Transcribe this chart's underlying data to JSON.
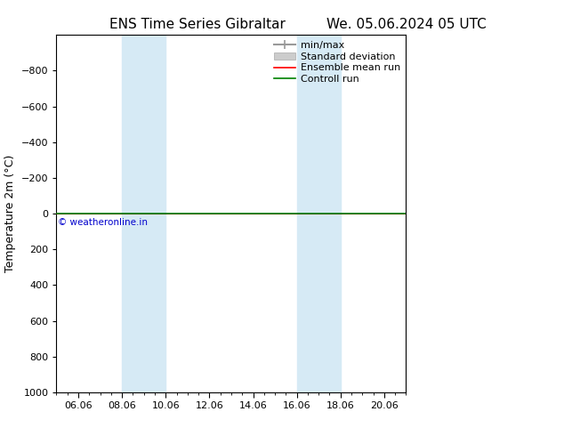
{
  "title_left": "ENS Time Series Gibraltar",
  "title_right": "We. 05.06.2024 05 UTC",
  "ylabel": "Temperature 2m (°C)",
  "ylim": [
    -1000,
    1000
  ],
  "yticks": [
    -800,
    -600,
    -400,
    -200,
    0,
    200,
    400,
    600,
    800,
    1000
  ],
  "xtick_labels": [
    "06.06",
    "08.06",
    "10.06",
    "12.06",
    "14.06",
    "16.06",
    "18.06",
    "20.06"
  ],
  "xtick_positions": [
    1,
    3,
    5,
    7,
    9,
    11,
    13,
    15
  ],
  "x_min": 0,
  "x_max": 16,
  "shade_bands": [
    {
      "x_start": 3,
      "x_end": 5
    },
    {
      "x_start": 11,
      "x_end": 13
    }
  ],
  "shade_color": "#d6eaf5",
  "line_y": 0,
  "ensemble_mean_color": "#ff0000",
  "control_run_color": "#008000",
  "min_max_color": "#999999",
  "std_dev_color": "#cccccc",
  "copyright_text": "© weatheronline.in",
  "copyright_color": "#0000cc",
  "background_color": "#ffffff",
  "plot_bg_color": "#ffffff",
  "legend_entries": [
    "min/max",
    "Standard deviation",
    "Ensemble mean run",
    "Controll run"
  ],
  "title_fontsize": 11,
  "ylabel_fontsize": 9,
  "tick_fontsize": 8,
  "legend_fontsize": 8
}
